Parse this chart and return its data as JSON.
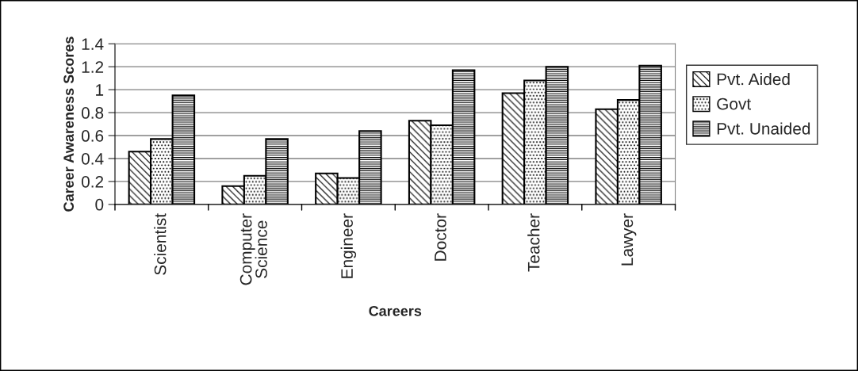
{
  "chart_data": {
    "type": "bar",
    "xlabel": "Careers",
    "ylabel": "Career Awareness Scores",
    "categories": [
      "Scientist",
      "Computer\nScience",
      "Engineer",
      "Doctor",
      "Teacher",
      "Lawyer"
    ],
    "series": [
      {
        "name": "Pvt. Aided",
        "color": "#000000",
        "values": [
          0.46,
          0.16,
          0.27,
          0.73,
          0.97,
          0.83
        ]
      },
      {
        "name": "Govt",
        "color": "#000000",
        "values": [
          0.57,
          0.25,
          0.23,
          0.69,
          1.08,
          0.91
        ]
      },
      {
        "name": "Pvt. Unaided",
        "color": "#000000",
        "values": [
          0.95,
          0.57,
          0.64,
          1.17,
          1.2,
          1.21
        ]
      }
    ],
    "ylim": [
      0,
      1.4
    ],
    "yticks": [
      0,
      0.2,
      0.4,
      0.6,
      0.8,
      1,
      1.2,
      1.4
    ],
    "grid": "y",
    "legend": "right"
  }
}
